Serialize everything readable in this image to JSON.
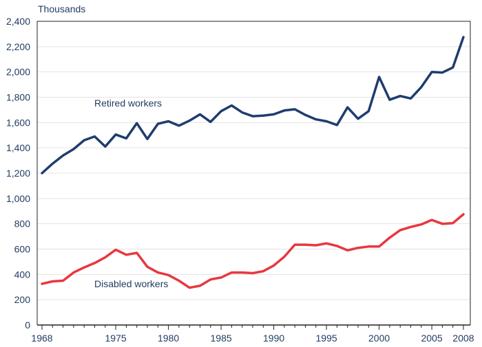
{
  "chart_data": {
    "type": "line",
    "title": "",
    "ylabel": "Thousands",
    "xlabel": "",
    "ylim": [
      0,
      2400
    ],
    "yticks": [
      0,
      200,
      400,
      600,
      800,
      1000,
      1200,
      1400,
      1600,
      1800,
      2000,
      2200,
      2400
    ],
    "ytick_labels": [
      "0",
      "200",
      "400",
      "600",
      "800",
      "1,000",
      "1,200",
      "1,400",
      "1,600",
      "1,800",
      "2,000",
      "2,200",
      "2,400"
    ],
    "xlim": [
      1968,
      2008
    ],
    "xticks": [
      1968,
      1975,
      1980,
      1985,
      1990,
      1995,
      2000,
      2005,
      2008
    ],
    "xtick_labels": [
      "1968",
      "1975",
      "1980",
      "1985",
      "1990",
      "1995",
      "2000",
      "2005",
      "2008"
    ],
    "grid": true,
    "x": [
      1968,
      1969,
      1970,
      1971,
      1972,
      1973,
      1974,
      1975,
      1976,
      1977,
      1978,
      1979,
      1980,
      1981,
      1982,
      1983,
      1984,
      1985,
      1986,
      1987,
      1988,
      1989,
      1990,
      1991,
      1992,
      1993,
      1994,
      1995,
      1996,
      1997,
      1998,
      1999,
      2000,
      2001,
      2002,
      2003,
      2004,
      2005,
      2006,
      2007,
      2008
    ],
    "series": [
      {
        "name": "Retired workers",
        "color": "#1f3c6e",
        "values": [
          1200,
          1275,
          1340,
          1390,
          1460,
          1490,
          1410,
          1505,
          1475,
          1595,
          1470,
          1590,
          1610,
          1575,
          1615,
          1665,
          1605,
          1690,
          1735,
          1680,
          1650,
          1655,
          1665,
          1695,
          1705,
          1660,
          1625,
          1610,
          1580,
          1720,
          1630,
          1690,
          1960,
          1780,
          1810,
          1790,
          1880,
          2000,
          1995,
          2035,
          2275
        ]
      },
      {
        "name": "Disabled workers",
        "color": "#e8373f",
        "values": [
          325,
          345,
          350,
          415,
          455,
          490,
          535,
          595,
          555,
          570,
          460,
          415,
          395,
          350,
          295,
          310,
          360,
          375,
          415,
          415,
          410,
          425,
          470,
          540,
          635,
          635,
          630,
          645,
          625,
          590,
          610,
          620,
          620,
          690,
          750,
          775,
          795,
          830,
          800,
          805,
          875
        ]
      }
    ],
    "annotations": [
      {
        "text": "Retired workers",
        "series": 0
      },
      {
        "text": "Disabled workers",
        "series": 1
      }
    ]
  }
}
